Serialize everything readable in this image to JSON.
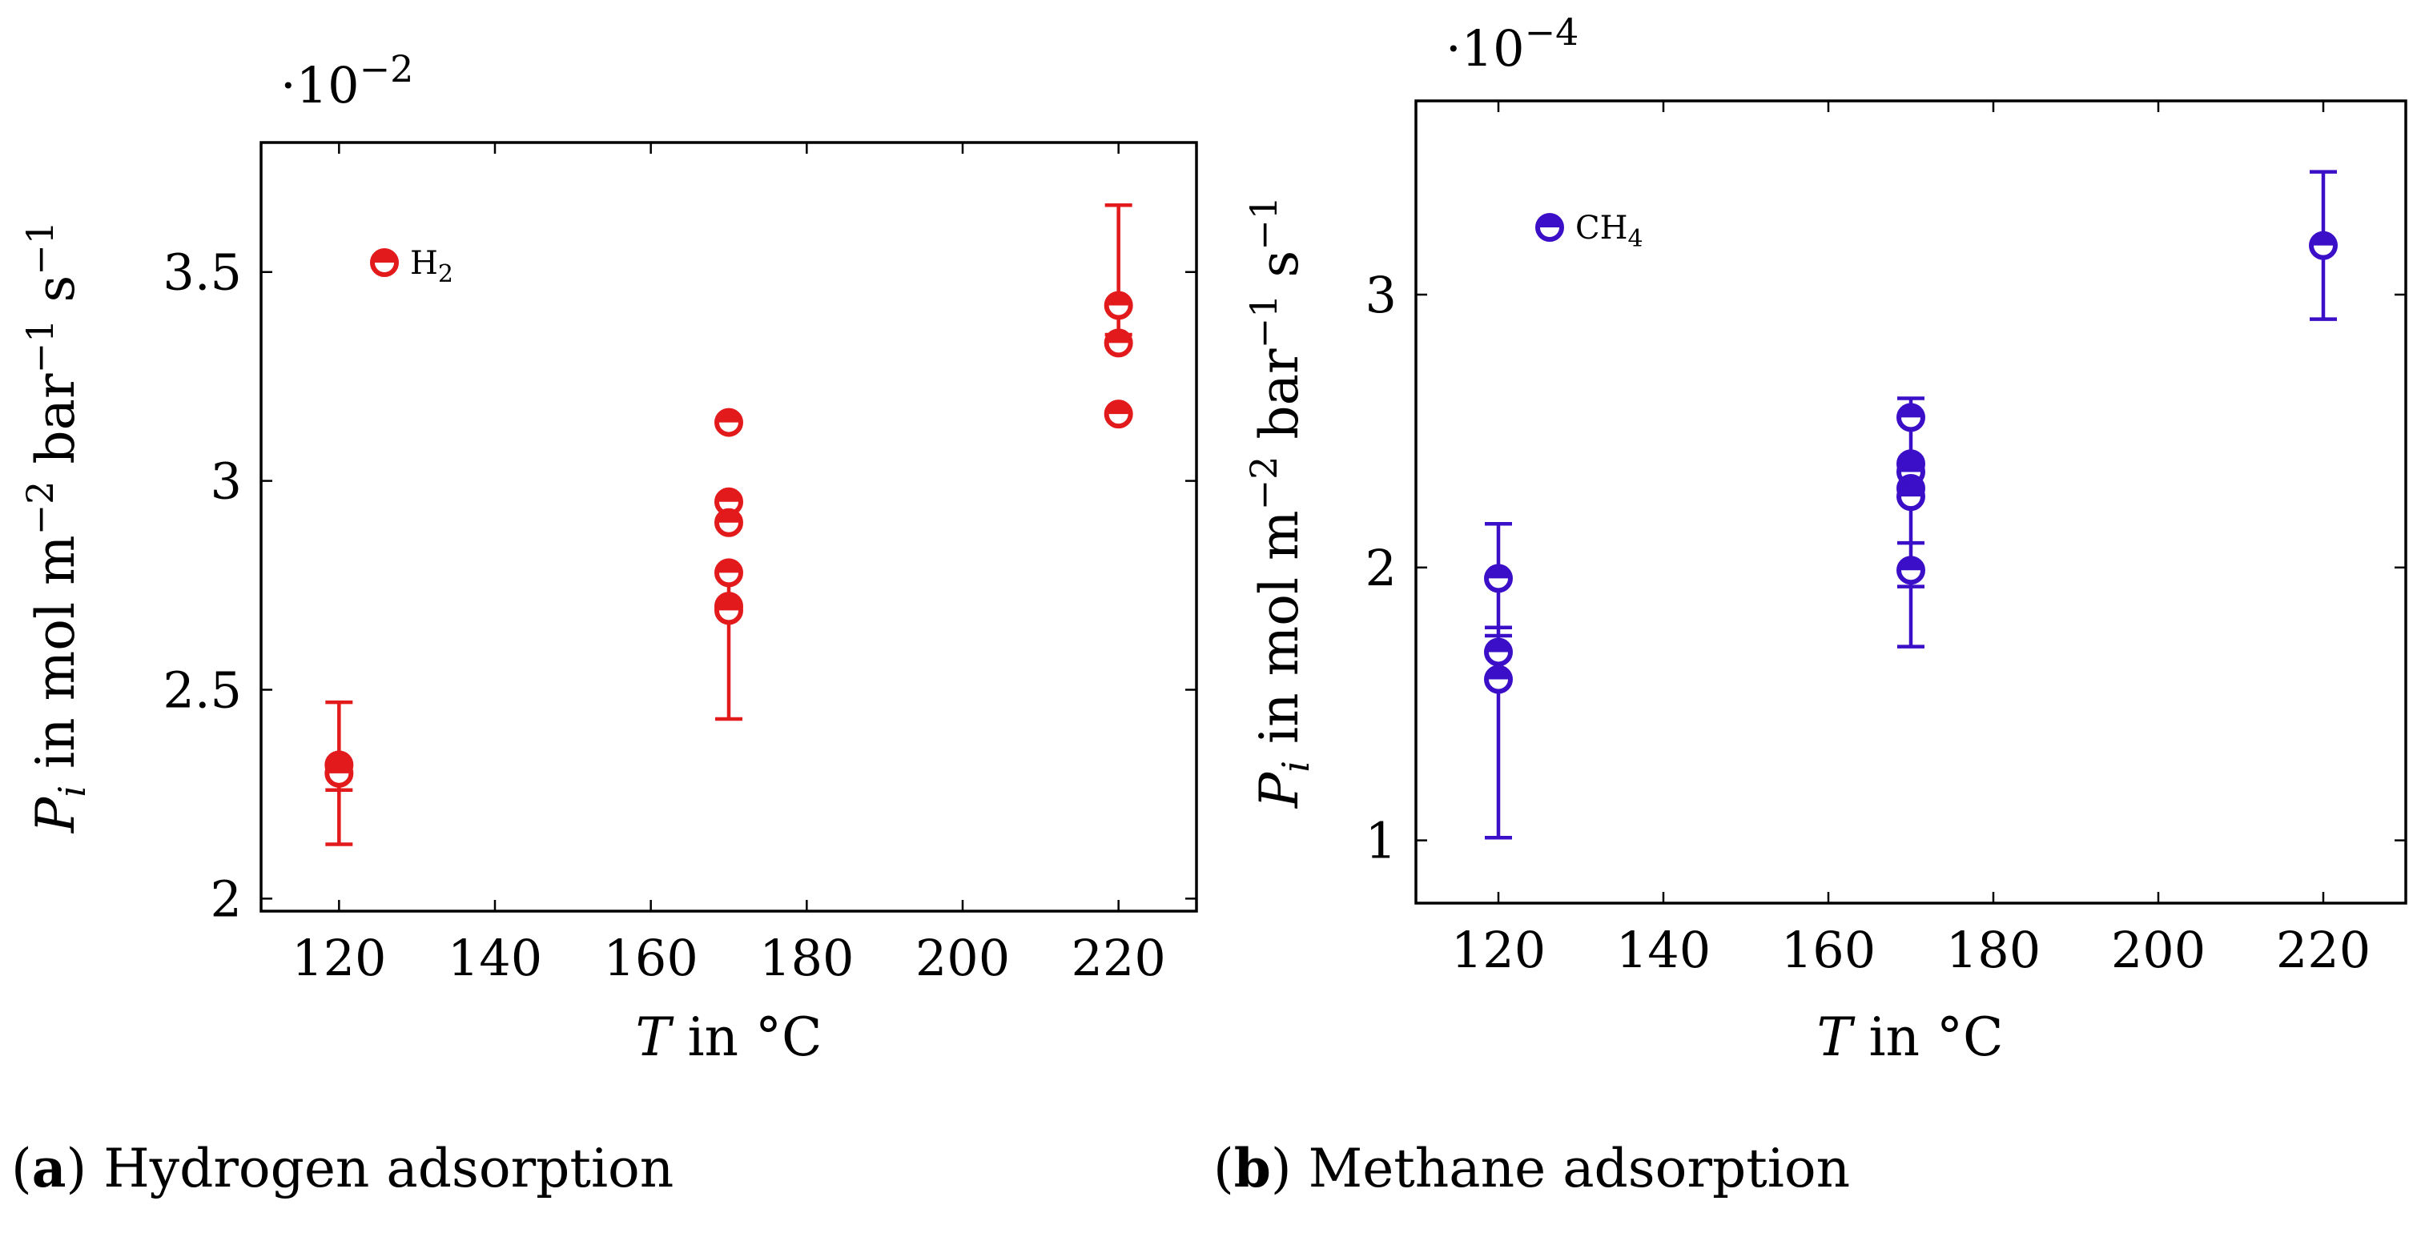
{
  "chart_data": [
    {
      "type": "scatter",
      "id": "a",
      "caption_letter": "a",
      "caption_open": "(",
      "caption_close": ")",
      "caption_text": " Hydrogen adsorption",
      "exponent_label": "·10",
      "exponent_power": "−2",
      "xlabel_var": "T",
      "xlabel_rest": " in °C",
      "ylabel_var": "P",
      "ylabel_sub": "i",
      "ylabel_in": " in ",
      "ylabel_mol": "mol m",
      "ylabel_mol_exp": "−2",
      "ylabel_bar": " bar",
      "ylabel_bar_exp": "−1",
      "ylabel_s": " s",
      "ylabel_s_exp": "−1",
      "xlim": [
        110,
        230
      ],
      "ylim": [
        1.97,
        3.81
      ],
      "xticks": [
        120,
        140,
        160,
        180,
        200,
        220
      ],
      "xtick_labels": [
        "120",
        "140",
        "160",
        "180",
        "200",
        "220"
      ],
      "yticks": [
        2,
        2.5,
        3,
        3.5
      ],
      "ytick_labels": [
        "2",
        "2.5",
        "3",
        "3.5"
      ],
      "color": "#e31a1c",
      "series": [
        {
          "name": "H2",
          "legend_main": "H",
          "legend_sub": "2",
          "points": [
            {
              "x": 120,
              "y": 2.32
            },
            {
              "x": 120,
              "y": 2.3
            },
            {
              "x": 170,
              "y": 3.14
            },
            {
              "x": 170,
              "y": 2.95
            },
            {
              "x": 170,
              "y": 2.9
            },
            {
              "x": 170,
              "y": 2.78
            },
            {
              "x": 170,
              "y": 2.7
            },
            {
              "x": 170,
              "y": 2.69
            },
            {
              "x": 220,
              "y": 3.42
            },
            {
              "x": 220,
              "y": 3.33
            },
            {
              "x": 220,
              "y": 3.16
            }
          ],
          "errorbars": [
            {
              "x": 120,
              "low": 2.13,
              "high": 2.47,
              "caps": [
                2.13,
                2.26,
                2.47
              ]
            },
            {
              "x": 170,
              "low": 2.43,
              "high": 2.78,
              "caps": [
                2.43
              ]
            },
            {
              "x": 220,
              "low": 3.3,
              "high": 3.66,
              "caps": [
                3.35,
                3.66
              ]
            }
          ]
        }
      ]
    },
    {
      "type": "scatter",
      "id": "b",
      "caption_letter": "b",
      "caption_open": "(",
      "caption_close": ")",
      "caption_text": " Methane adsorption",
      "exponent_label": "·10",
      "exponent_power": "−4",
      "xlabel_var": "T",
      "xlabel_rest": " in °C",
      "ylabel_var": "P",
      "ylabel_sub": "i",
      "ylabel_in": " in ",
      "ylabel_mol": "mol m",
      "ylabel_mol_exp": "−2",
      "ylabel_bar": " bar",
      "ylabel_bar_exp": "−1",
      "ylabel_s": " s",
      "ylabel_s_exp": "−1",
      "xlim": [
        110,
        230
      ],
      "ylim": [
        0.77,
        3.71
      ],
      "xticks": [
        120,
        140,
        160,
        180,
        200,
        220
      ],
      "xtick_labels": [
        "120",
        "140",
        "160",
        "180",
        "200",
        "220"
      ],
      "yticks": [
        1,
        2,
        3
      ],
      "ytick_labels": [
        "1",
        "2",
        "3"
      ],
      "color": "#3b0fc8",
      "series": [
        {
          "name": "CH4",
          "legend_main": "CH",
          "legend_sub": "4",
          "points": [
            {
              "x": 120,
              "y": 1.96
            },
            {
              "x": 120,
              "y": 1.69
            },
            {
              "x": 120,
              "y": 1.59
            },
            {
              "x": 170,
              "y": 2.55
            },
            {
              "x": 170,
              "y": 2.38
            },
            {
              "x": 170,
              "y": 2.35
            },
            {
              "x": 170,
              "y": 2.29
            },
            {
              "x": 170,
              "y": 2.26
            },
            {
              "x": 170,
              "y": 1.99
            },
            {
              "x": 220,
              "y": 3.18
            }
          ],
          "errorbars": [
            {
              "x": 120,
              "low": 1.01,
              "high": 2.16,
              "caps": [
                1.01,
                1.75,
                1.78,
                2.16
              ]
            },
            {
              "x": 170,
              "low": 1.71,
              "high": 2.62,
              "caps": [
                1.71,
                1.93,
                2.09,
                2.62
              ]
            },
            {
              "x": 220,
              "low": 2.91,
              "high": 3.45,
              "caps": [
                2.91,
                3.45
              ]
            }
          ]
        }
      ]
    }
  ]
}
